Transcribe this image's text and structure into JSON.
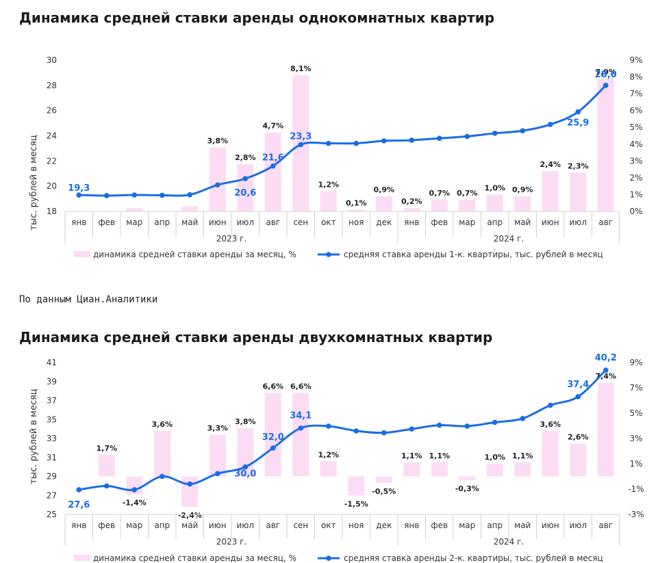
{
  "source": "По данным Циан.Аналитики",
  "chart_data": [
    {
      "type": "bar+line",
      "title": "Динамика средней ставки аренды однокомнатных квартир",
      "ylabel": "тыс. рублей в месяц",
      "ylim": [
        18,
        30
      ],
      "y_ticks": [
        "18",
        "20",
        "22",
        "24",
        "26",
        "28",
        "30"
      ],
      "y2lim": [
        0,
        9
      ],
      "y2_ticks": [
        "0%",
        "1%",
        "2%",
        "3%",
        "4%",
        "5%",
        "6%",
        "7%",
        "8%",
        "9%"
      ],
      "categories": [
        "янв",
        "фев",
        "мар",
        "апр",
        "май",
        "июн",
        "июл",
        "авг",
        "сен",
        "окт",
        "ноя",
        "дек",
        "янв",
        "фев",
        "мар",
        "апр",
        "май",
        "июн",
        "июл",
        "авг"
      ],
      "year_groups": [
        {
          "label": "2023 г.",
          "span": 12
        },
        {
          "label": "2024 г.",
          "span": 8
        }
      ],
      "series": [
        {
          "name": "динамика средней ставки аренды за месяц, %",
          "type": "bar",
          "color": "#fcdcf5",
          "values": [
            0,
            0,
            0.2,
            0,
            0.3,
            3.8,
            2.8,
            4.7,
            8.1,
            1.2,
            0.1,
            0.9,
            0.2,
            0.7,
            0.7,
            1.0,
            0.9,
            2.4,
            2.3,
            7.9
          ],
          "labels": [
            "",
            "",
            "",
            "",
            "",
            "3,8%",
            "2,8%",
            "4,7%",
            "8,1%",
            "1,2%",
            "0,1%",
            "0,9%",
            "0,2%",
            "0,7%",
            "0,7%",
            "1,0%",
            "0,9%",
            "2,4%",
            "2,3%",
            "7,9%"
          ]
        },
        {
          "name": "средняя ставка аренды 1-к. квартиры, тыс. рублей в месяц",
          "type": "line",
          "color": "#1a6ce6",
          "values": [
            19.3,
            19.25,
            19.3,
            19.28,
            19.32,
            20.1,
            20.6,
            21.6,
            23.3,
            23.4,
            23.4,
            23.6,
            23.65,
            23.8,
            23.95,
            24.2,
            24.4,
            24.9,
            25.9,
            28.0
          ],
          "labels": [
            "19,3",
            "",
            "",
            "",
            "",
            "",
            "20,6",
            "21,6",
            "23,3",
            "",
            "",
            "",
            "",
            "",
            "",
            "",
            "",
            "",
            "25,9",
            "28,0"
          ]
        }
      ]
    },
    {
      "type": "bar+line",
      "title": "Динамика средней ставки аренды двухкомнатных квартир",
      "ylabel": "тыс. рублей в месяц",
      "ylim": [
        25,
        41
      ],
      "y_ticks": [
        "25",
        "27",
        "29",
        "31",
        "33",
        "35",
        "37",
        "39",
        "41"
      ],
      "y2lim": [
        -3,
        9
      ],
      "y2_ticks": [
        "-3%",
        "-1%",
        "1%",
        "3%",
        "5%",
        "7%",
        "9%"
      ],
      "categories": [
        "янв",
        "фев",
        "мар",
        "апр",
        "май",
        "июн",
        "июл",
        "авг",
        "сен",
        "окт",
        "ноя",
        "дек",
        "янв",
        "фев",
        "мар",
        "апр",
        "май",
        "июн",
        "июл",
        "авг"
      ],
      "year_groups": [
        {
          "label": "2023 г.",
          "span": 12
        },
        {
          "label": "2024 г.",
          "span": 8
        }
      ],
      "series": [
        {
          "name": "динамика средней ставки аренды за месяц, %",
          "type": "bar",
          "color": "#fcdcf5",
          "values": [
            0,
            1.7,
            -1.4,
            3.6,
            -2.4,
            3.3,
            3.8,
            6.6,
            6.6,
            1.2,
            -1.5,
            -0.5,
            1.1,
            1.1,
            -0.3,
            1.0,
            1.1,
            3.6,
            2.6,
            7.4
          ],
          "labels": [
            "",
            "1,7%",
            "-1,4%",
            "3,6%",
            "-2,4%",
            "3,3%",
            "3,8%",
            "6,6%",
            "6,6%",
            "1,2%",
            "-1,5%",
            "-0,5%",
            "1,1%",
            "1,1%",
            "-0,3%",
            "1,0%",
            "1,1%",
            "3,6%",
            "2,6%",
            "7,4%"
          ]
        },
        {
          "name": "средняя ставка аренды 2-к. квартиры, тыс. рублей в месяц",
          "type": "line",
          "color": "#1a6ce6",
          "values": [
            27.6,
            28.0,
            27.6,
            29.0,
            28.2,
            29.3,
            30.0,
            32.0,
            34.1,
            34.3,
            33.8,
            33.6,
            34.0,
            34.4,
            34.3,
            34.7,
            35.1,
            36.5,
            37.4,
            40.2
          ],
          "labels": [
            "27,6",
            "",
            "",
            "",
            "",
            "",
            "30,0",
            "32,0",
            "34,1",
            "",
            "",
            "",
            "",
            "",
            "",
            "",
            "",
            "",
            "37,4",
            "40,2"
          ]
        }
      ]
    }
  ]
}
